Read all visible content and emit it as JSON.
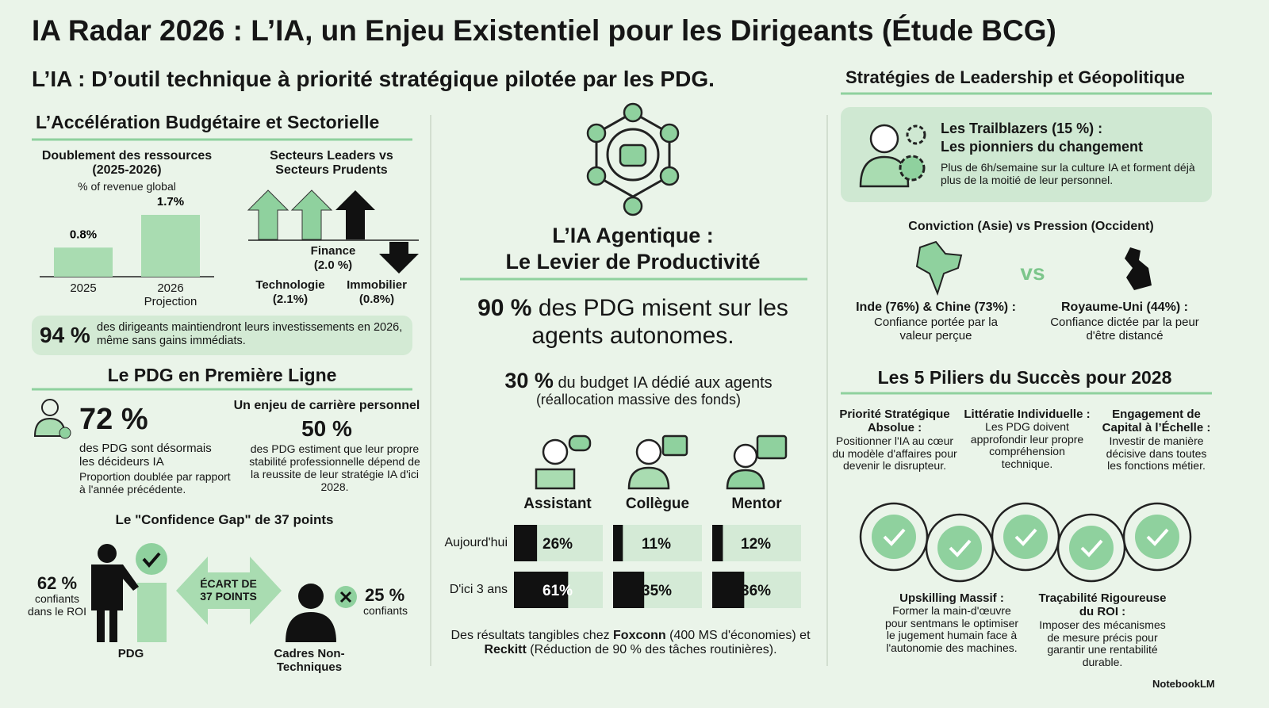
{
  "header": {
    "title": "IA Radar 2026 : L’IA, un Enjeu Existentiel pour les Dirigeants (Étude BCG)",
    "subtitle": "L’IA : D’outil technique à priorité stratégique pilotée par les PDG."
  },
  "left": {
    "heading": "L’Accélération Budgétaire et Sectorielle",
    "budget_chart": {
      "type": "bar",
      "title": "Doublement des ressources (2025-2026)",
      "subtitle": "% of revenue global",
      "categories": [
        "2025",
        "2026 Projection"
      ],
      "values": [
        0.8,
        1.7
      ],
      "value_labels": [
        "0.8%",
        "1.7%"
      ],
      "color": "#a9dcb1"
    },
    "sectors": {
      "title": "Secteurs Leaders vs Secteurs Prudents",
      "items": [
        {
          "name": "Finance",
          "value": "(2.0 %)"
        },
        {
          "name": "Technologie",
          "value": "(2.1%)"
        },
        {
          "name": "Immobilier",
          "value": "(0.8%)"
        }
      ]
    },
    "highlight": {
      "stat": "94 %",
      "text": "des dirigeants maintiendront leurs investissements en 2026, même sans gains immédiats."
    },
    "ceo_heading": "Le PDG en Première Ligne",
    "ceo": {
      "stat": "72 %",
      "text": "des PDG sont désormais les décideurs IA",
      "note": "Proportion doublée par rapport à l'année précédente."
    },
    "career": {
      "title": "Un enjeu de carrière personnel",
      "stat": "50 %",
      "text": "des PDG estiment que leur propre stabilité professionnelle dépend de la reussite de leur stratégie IA d'ici 2028."
    },
    "gap": {
      "title": "Le \"Confidence Gap\" de 37 points",
      "left_stat": "62 %",
      "left_text": "confiants dans le ROI",
      "left_label": "PDG",
      "arrow": "ÉCART DE 37 POINTS",
      "right_stat": "25 %",
      "right_text": "confiants",
      "right_label": "Cadres Non-Techniques"
    }
  },
  "center": {
    "heading_line1": "L’IA Agentique :",
    "heading_line2": "Le Levier de Productivité",
    "stat1": {
      "stat": "90 %",
      "text": "des PDG misent sur les agents autonomes."
    },
    "stat2": {
      "stat": "30 %",
      "text": "du budget IA dédié aux agents",
      "note": "(réallocation massive des fonds)"
    },
    "agents_chart": {
      "type": "bar",
      "orientation": "horizontal",
      "categories": [
        "Assistant",
        "Collègue",
        "Mentor"
      ],
      "xlim": [
        0,
        100
      ],
      "series": [
        {
          "name": "Aujourd'hui",
          "color": "#111111",
          "values": [
            26,
            11,
            12
          ],
          "value_labels": [
            "26%",
            "11%",
            "12%"
          ]
        },
        {
          "name": "D'ici 3 ans",
          "color": "#111111",
          "values": [
            61,
            35,
            36
          ],
          "value_labels": [
            "61%",
            "35%",
            "36%"
          ]
        }
      ]
    },
    "footer": [
      "Des résultats tangibles chez ",
      "Foxconn",
      " (400 MS d'économies) et ",
      "Reckitt",
      " (Réduction de 90 % des tâches routinières)."
    ]
  },
  "right": {
    "heading": "Stratégies de Leadership et Géopolitique",
    "trailblazers": {
      "title": "Les Trailblazers (15 %) :",
      "subtitle": "Les pionniers du changement",
      "text": "Plus de 6h/semaine sur la culture IA et forment déjà plus de la moitié de leur personnel."
    },
    "geo": {
      "title": "Conviction (Asie) vs Pression (Occident)",
      "vs": "vs",
      "left_title": "Inde (76%) & Chine (73%) :",
      "left_text": "Confiance portée par la valeur perçue",
      "right_title": "Royaume-Uni (44%) :",
      "right_text": "Confiance dictée par la peur d'être distancé"
    },
    "pillars_heading": "Les 5 Piliers du Succès pour 2028",
    "pillars": [
      {
        "title": "Priorité Stratégique Absolue :",
        "text": "Positionner l'IA au cœur du modèle d'affaires pour devenir le disrupteur."
      },
      {
        "title": "Littératie Individuelle :",
        "text": "Les PDG doivent approfondir leur propre compréhension technique."
      },
      {
        "title": "Engagement de Capital à l’Échelle :",
        "text": "Investir de manière décisive dans toutes les fonctions métier."
      },
      {
        "title": "Upskilling Massif :",
        "text": "Former la main-d'œuvre pour sentmans le optimiser le jugement humain face à l'autonomie des machines."
      },
      {
        "title": "Traçabilité Rigoureuse du ROI :",
        "text": "Imposer des mécanismes de mesure précis pour garantir une rentabilité durable."
      }
    ]
  },
  "brand": "NotebookLM"
}
